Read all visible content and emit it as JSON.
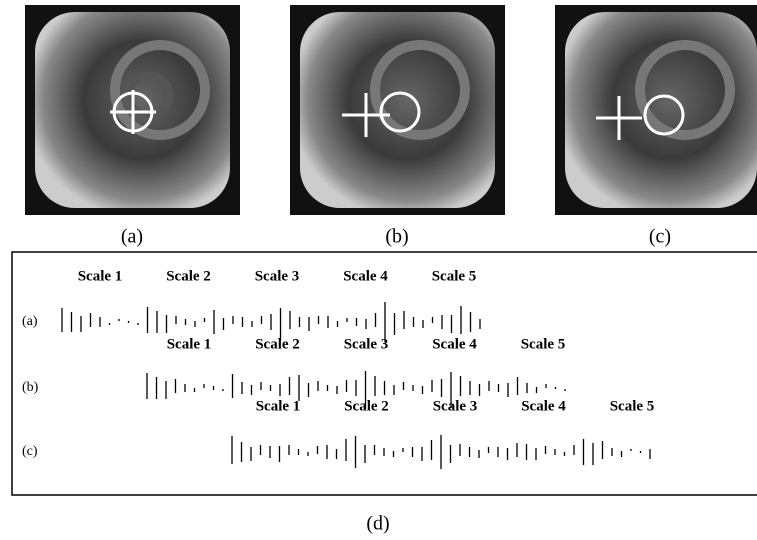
{
  "panels": [
    {
      "label": "(a)"
    },
    {
      "label": "(b)"
    },
    {
      "label": "(c)"
    }
  ],
  "figure": {
    "label": "(d)",
    "rows": [
      {
        "label": "(a)",
        "scales": [
          "Scale 1",
          "Scale 2",
          "Scale 3",
          "Scale 4",
          "Scale 5"
        ],
        "sticks": [
          24,
          20,
          16,
          14,
          10,
          2,
          2,
          2,
          2,
          26,
          22,
          18,
          8,
          6,
          6,
          4,
          24,
          12,
          8,
          10,
          6,
          8,
          16,
          32,
          18,
          10,
          14,
          8,
          12,
          6,
          4,
          8,
          10,
          14,
          40,
          22,
          18,
          10,
          8,
          6,
          14,
          18,
          28,
          20,
          10
        ]
      },
      {
        "label": "(b)",
        "scales": [
          "Scale 1",
          "Scale 2",
          "Scale 3",
          "Scale 4",
          "Scale 5"
        ],
        "sticks": [
          26,
          22,
          18,
          14,
          8,
          4,
          4,
          4,
          2,
          24,
          12,
          10,
          8,
          6,
          12,
          18,
          26,
          14,
          10,
          6,
          8,
          12,
          16,
          38,
          20,
          14,
          10,
          8,
          6,
          8,
          12,
          18,
          36,
          20,
          14,
          12,
          10,
          8,
          14,
          18,
          10,
          6,
          4,
          2,
          2
        ]
      },
      {
        "label": "(c)",
        "scales": [
          "Scale 1",
          "Scale 2",
          "Scale 3",
          "Scale 4",
          "Scale 5"
        ],
        "sticks": [
          28,
          20,
          14,
          10,
          12,
          16,
          10,
          6,
          4,
          8,
          14,
          10,
          22,
          32,
          18,
          10,
          8,
          6,
          4,
          10,
          14,
          20,
          34,
          18,
          12,
          10,
          8,
          6,
          10,
          12,
          14,
          16,
          12,
          8,
          6,
          4,
          10,
          26,
          22,
          18,
          8,
          6,
          2,
          2,
          10
        ]
      }
    ]
  }
}
